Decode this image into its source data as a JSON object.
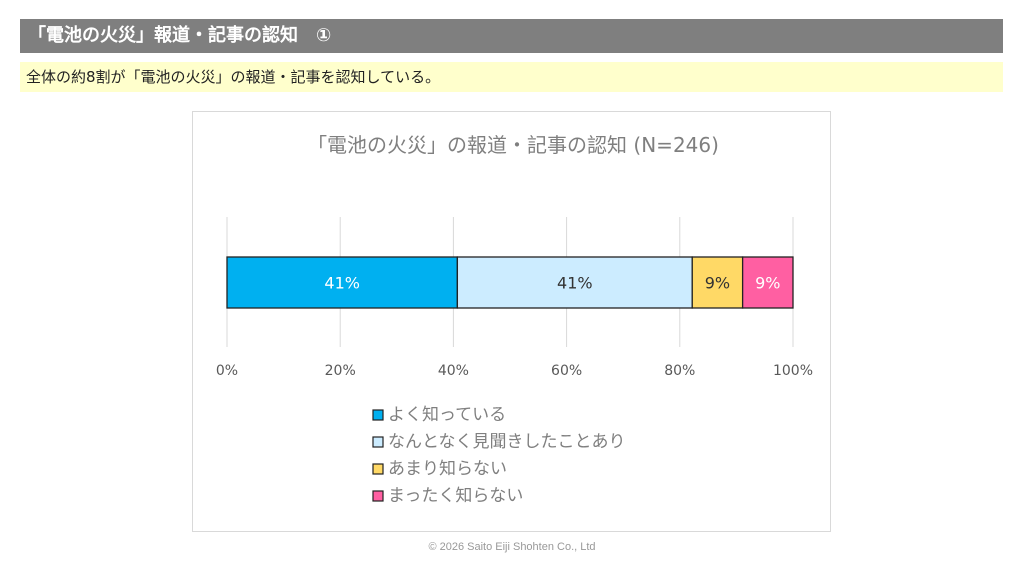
{
  "header": {
    "title": "「電池の火災」報道・記事の認知　①"
  },
  "summary": {
    "text": "全体の約8割が「電池の火災」の報道・記事を認知している。"
  },
  "footer": {
    "copyright": "© 2026 Saito Eiji Shohten Co., Ltd"
  },
  "chart_data": {
    "type": "bar",
    "orientation": "horizontal-stacked-100",
    "title": "「電池の火災」の報道・記事の認知 (N=246)",
    "xlim": [
      0,
      100
    ],
    "x_ticks": [
      "0%",
      "20%",
      "40%",
      "60%",
      "80%",
      "100%"
    ],
    "grid": true,
    "legend_position": "bottom",
    "series": [
      {
        "name": "よく知っている",
        "value": 40.7,
        "label": "41%",
        "color": "#00B0F0",
        "label_color": "#ffffff"
      },
      {
        "name": "なんとなく見聞きしたことあり",
        "value": 41.5,
        "label": "41%",
        "color": "#CCECFF",
        "label_color": "#333333"
      },
      {
        "name": "あまり知らない",
        "value": 8.9,
        "label": "9%",
        "color": "#FFD966",
        "label_color": "#333333"
      },
      {
        "name": "まったく知らない",
        "value": 8.9,
        "label": "9%",
        "color": "#FF5FA2",
        "label_color": "#ffffff"
      }
    ]
  }
}
